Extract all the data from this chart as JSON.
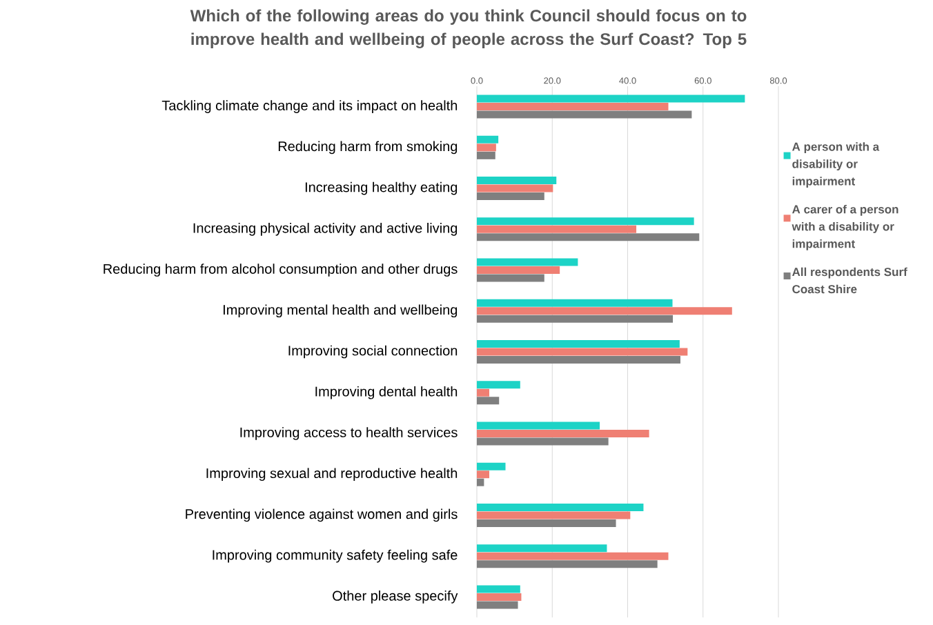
{
  "chart_data": {
    "type": "bar",
    "orientation": "horizontal",
    "title": "Which of the following areas do you think Council should focus on to improve health and wellbeing of people across the Surf Coast? Top 5",
    "categories": [
      "Tackling climate change and its impact on health",
      "Reducing harm from smoking",
      "Increasing healthy eating",
      "Increasing physical activity and active living",
      "Reducing harm from alcohol consumption and other drugs",
      "Improving mental health and wellbeing",
      "Improving social connection",
      "Improving dental health",
      "Improving access to health services",
      "Improving sexual and reproductive health",
      "Preventing violence against women and girls",
      "Improving community safety feeling safe",
      "Other please specify"
    ],
    "series": [
      {
        "name": "A person with a disability or impairment",
        "color": "#1dd3c6",
        "values": [
          71.1,
          5.7,
          21.1,
          57.6,
          26.8,
          51.9,
          53.8,
          11.5,
          32.6,
          7.6,
          44.2,
          34.5,
          11.5
        ]
      },
      {
        "name": "A carer of a person with a disability or impairment",
        "color": "#ef7f73",
        "values": [
          50.8,
          5.1,
          20.2,
          42.3,
          22.0,
          67.7,
          55.9,
          3.3,
          45.7,
          3.3,
          40.7,
          50.8,
          11.8
        ]
      },
      {
        "name": "All respondents Surf Coast Shire",
        "color": "#7f7f7f",
        "values": [
          57.0,
          4.9,
          17.9,
          59.0,
          17.9,
          52.0,
          54.0,
          5.9,
          34.9,
          1.9,
          36.9,
          47.9,
          10.9
        ]
      }
    ],
    "xlim": [
      0,
      80
    ],
    "xticks": [
      {
        "value": 0,
        "label": "0.0"
      },
      {
        "value": 20,
        "label": "20.0"
      },
      {
        "value": 40,
        "label": "40.0"
      },
      {
        "value": 60,
        "label": "60.0"
      },
      {
        "value": 80,
        "label": "80.0"
      }
    ],
    "grid": "x",
    "legend": "right"
  }
}
